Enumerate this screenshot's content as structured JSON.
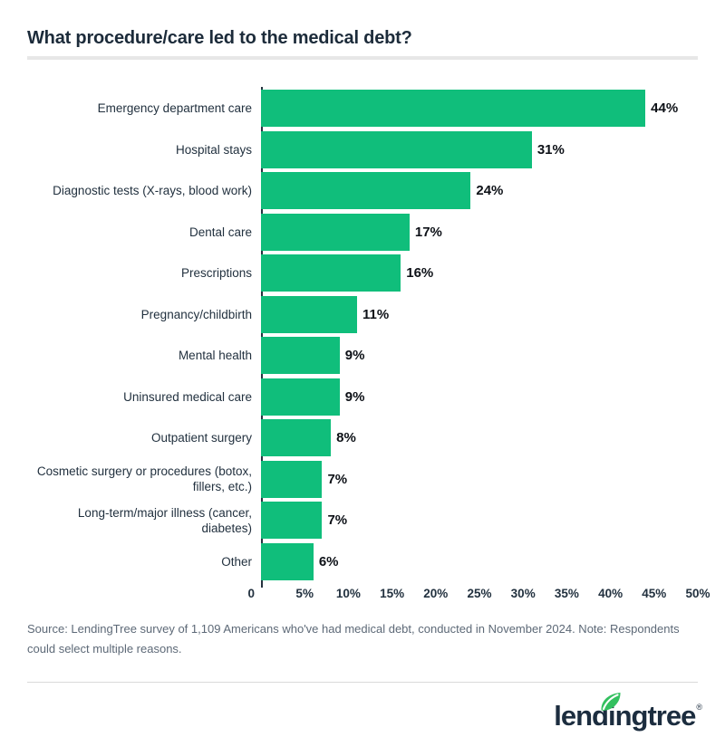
{
  "header": {
    "title": "What procedure/care led to the medical debt?"
  },
  "chart_data": {
    "type": "bar",
    "orientation": "horizontal",
    "title": "What procedure/care led to the medical debt?",
    "categories": [
      "Emergency department care",
      "Hospital stays",
      "Diagnostic tests (X-rays, blood work)",
      "Dental care",
      "Prescriptions",
      "Pregnancy/childbirth",
      "Mental health",
      "Uninsured medical care",
      "Outpatient surgery",
      "Cosmetic surgery or procedures (botox, fillers, etc.)",
      "Long-term/major illness (cancer, diabetes)",
      "Other"
    ],
    "values": [
      44,
      31,
      24,
      17,
      16,
      11,
      9,
      9,
      8,
      7,
      7,
      6
    ],
    "value_labels": [
      "44%",
      "31%",
      "24%",
      "17%",
      "16%",
      "11%",
      "9%",
      "9%",
      "8%",
      "7%",
      "7%",
      "6%"
    ],
    "xlabel": "",
    "ylabel": "",
    "xlim": [
      0,
      50
    ],
    "x_ticks": [
      "0",
      "5%",
      "10%",
      "15%",
      "20%",
      "25%",
      "30%",
      "35%",
      "40%",
      "45%",
      "50%"
    ],
    "grid": false,
    "legend": "none",
    "bar_color": "#10be7b"
  },
  "footer": {
    "source_note": "Source: LendingTree survey of 1,109 Americans who've had medical debt, conducted in November 2024. Note: Respondents could select multiple reasons.",
    "logo": {
      "text": "lendingtree",
      "registered_mark": "®"
    }
  },
  "colors": {
    "bar_green": "#10be7b",
    "leaf_green": "#33c05f",
    "title_navy": "#1c2b3a",
    "label_navy": "#22313f",
    "value_black": "#0d1117",
    "axis_navy": "#26323f",
    "source_gray": "#5d6977",
    "title_divider": "#e7e7e7",
    "footer_divider": "#d9d9d9",
    "background": "#ffffff"
  }
}
